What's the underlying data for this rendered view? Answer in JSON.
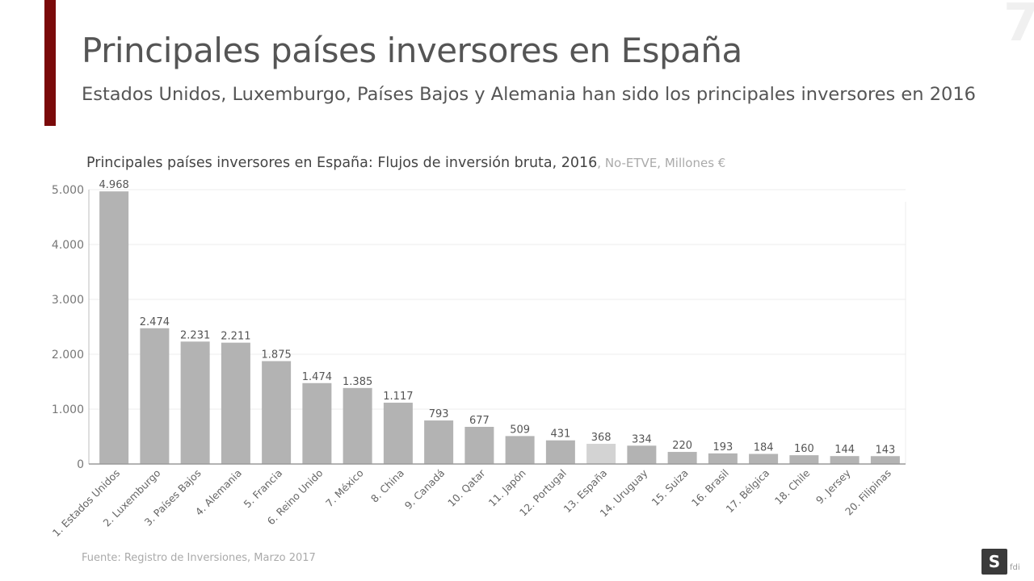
{
  "page": {
    "title": "Principales países inversores en España",
    "subtitle": "Estados Unidos, Luxemburgo, Países Bajos y Alemania han sido los principales inversores en 2016",
    "page_number": "7",
    "source": "Fuente: Registro de Inversiones, Marzo 2017",
    "logo_text": "S",
    "logo_tag": "fdi"
  },
  "colors": {
    "accent": "#7a0a0a",
    "bar": "#b3b3b3",
    "bar_highlight": "#d3d3d3"
  },
  "chart_data": {
    "type": "bar",
    "title": "Principales países inversores en España: Flujos de inversión bruta, 2016",
    "title_units": ", No-ETVE, Millones €",
    "xlabel": "",
    "ylabel": "",
    "ylim": [
      0,
      5000
    ],
    "yticks": [
      0,
      1000,
      2000,
      3000,
      4000,
      5000
    ],
    "ytick_labels": [
      "0",
      "1.000",
      "2.000",
      "3.000",
      "4.000",
      "5.000"
    ],
    "grid": true,
    "categories": [
      "1. Estados Unidos",
      "2. Luxemburgo",
      "3. Países Bajos",
      "4. Alemania",
      "5. Francia",
      "6. Reino Unido",
      "7. México",
      "8. China",
      "9. Canadá",
      "10. Qatar",
      "11. Japón",
      "12. Portugal",
      "13. España",
      "14. Uruguay",
      "15. Suiza",
      "16. Brasil",
      "17. Bélgica",
      "18. Chile",
      "9. Jersey",
      "20. Filipinas"
    ],
    "values": [
      4968,
      2474,
      2231,
      2211,
      1875,
      1474,
      1385,
      1117,
      793,
      677,
      509,
      431,
      368,
      334,
      220,
      193,
      184,
      160,
      144,
      143
    ],
    "value_labels": [
      "4.968",
      "2.474",
      "2.231",
      "2.211",
      "1.875",
      "1.474",
      "1.385",
      "1.117",
      "793",
      "677",
      "509",
      "431",
      "368",
      "334",
      "220",
      "193",
      "184",
      "160",
      "144",
      "143"
    ],
    "highlight_index": 12
  }
}
